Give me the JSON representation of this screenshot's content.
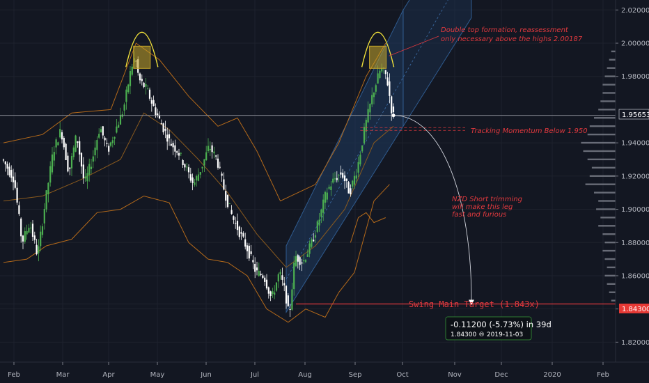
{
  "chart_data": {
    "type": "candlestick",
    "x_axis": {
      "months": [
        "Feb",
        "Mar",
        "Apr",
        "May",
        "Jun",
        "Jul",
        "Aug",
        "Sep",
        "Oct",
        "Nov",
        "Dec",
        "2020",
        "Feb"
      ]
    },
    "y_axis": {
      "position": "right",
      "range": [
        1.808,
        2.026
      ],
      "ticks": [
        "1.82000",
        "1.84000",
        "1.86000",
        "1.88000",
        "1.90000",
        "1.92000",
        "1.94000",
        "1.98000",
        "2.00000",
        "2.02000"
      ]
    },
    "price_path": [
      [
        0,
        1.93
      ],
      [
        6,
        1.918
      ],
      [
        10,
        1.88
      ],
      [
        14,
        1.892
      ],
      [
        18,
        1.872
      ],
      [
        22,
        1.905
      ],
      [
        26,
        1.935
      ],
      [
        30,
        1.948
      ],
      [
        34,
        1.922
      ],
      [
        38,
        1.945
      ],
      [
        42,
        1.915
      ],
      [
        46,
        1.93
      ],
      [
        50,
        1.95
      ],
      [
        54,
        1.935
      ],
      [
        58,
        1.948
      ],
      [
        62,
        1.96
      ],
      [
        66,
        1.985
      ],
      [
        68,
        1.992
      ],
      [
        70,
        1.978
      ],
      [
        74,
        1.972
      ],
      [
        78,
        1.96
      ],
      [
        82,
        1.95
      ],
      [
        86,
        1.94
      ],
      [
        90,
        1.935
      ],
      [
        94,
        1.925
      ],
      [
        98,
        1.915
      ],
      [
        102,
        1.925
      ],
      [
        106,
        1.938
      ],
      [
        110,
        1.93
      ],
      [
        114,
        1.91
      ],
      [
        118,
        1.895
      ],
      [
        122,
        1.885
      ],
      [
        126,
        1.875
      ],
      [
        130,
        1.862
      ],
      [
        134,
        1.86
      ],
      [
        138,
        1.846
      ],
      [
        142,
        1.862
      ],
      [
        145,
        1.85
      ],
      [
        147,
        1.835
      ],
      [
        150,
        1.872
      ],
      [
        154,
        1.868
      ],
      [
        158,
        1.878
      ],
      [
        162,
        1.892
      ],
      [
        166,
        1.91
      ],
      [
        170,
        1.918
      ],
      [
        174,
        1.922
      ],
      [
        178,
        1.91
      ],
      [
        182,
        1.925
      ],
      [
        186,
        1.95
      ],
      [
        190,
        1.97
      ],
      [
        194,
        1.985
      ],
      [
        197,
        1.98
      ],
      [
        200,
        1.9565
      ]
    ],
    "upper_band": [
      [
        0,
        1.94
      ],
      [
        20,
        1.945
      ],
      [
        35,
        1.958
      ],
      [
        55,
        1.96
      ],
      [
        68,
        2.0
      ],
      [
        80,
        1.99
      ],
      [
        95,
        1.968
      ],
      [
        110,
        1.95
      ],
      [
        120,
        1.955
      ],
      [
        130,
        1.935
      ],
      [
        142,
        1.905
      ],
      [
        160,
        1.915
      ],
      [
        172,
        1.94
      ],
      [
        186,
        1.98
      ],
      [
        196,
        2.0
      ]
    ],
    "lower_band": [
      [
        0,
        1.868
      ],
      [
        12,
        1.87
      ],
      [
        22,
        1.878
      ],
      [
        35,
        1.882
      ],
      [
        48,
        1.898
      ],
      [
        60,
        1.9
      ],
      [
        72,
        1.908
      ],
      [
        85,
        1.904
      ],
      [
        95,
        1.88
      ],
      [
        105,
        1.87
      ],
      [
        115,
        1.868
      ],
      [
        125,
        1.86
      ],
      [
        135,
        1.84
      ],
      [
        146,
        1.832
      ],
      [
        155,
        1.84
      ],
      [
        165,
        1.835
      ],
      [
        172,
        1.85
      ],
      [
        180,
        1.862
      ],
      [
        190,
        1.905
      ],
      [
        198,
        1.915
      ]
    ],
    "mid_band": [
      [
        0,
        1.905
      ],
      [
        20,
        1.908
      ],
      [
        40,
        1.918
      ],
      [
        60,
        1.93
      ],
      [
        72,
        1.958
      ],
      [
        85,
        1.948
      ],
      [
        100,
        1.93
      ],
      [
        115,
        1.91
      ],
      [
        130,
        1.885
      ],
      [
        145,
        1.865
      ],
      [
        160,
        1.878
      ],
      [
        175,
        1.9
      ],
      [
        190,
        1.94
      ],
      [
        200,
        1.95
      ]
    ],
    "momentum_line": [
      [
        178,
        1.88
      ],
      [
        182,
        1.895
      ],
      [
        186,
        1.898
      ],
      [
        190,
        1.892
      ],
      [
        196,
        1.895
      ]
    ],
    "channel": {
      "base_start": [
        145,
        1.838
      ],
      "base_end": [
        205,
        1.95
      ],
      "width": 0.04
    },
    "double_top": [
      [
        71,
        1.9915
      ],
      [
        192,
        1.9915
      ]
    ],
    "current_price": {
      "value": 1.95653,
      "label": "1.95653"
    },
    "tracking_level": {
      "value": 1.95
    },
    "target_level": {
      "value": 1.843,
      "label": "1.84300"
    },
    "projection_end_idx": 240,
    "volume_profile": [
      [
        1.995,
        2
      ],
      [
        1.99,
        3
      ],
      [
        1.985,
        4
      ],
      [
        1.98,
        5
      ],
      [
        1.975,
        6
      ],
      [
        1.97,
        6
      ],
      [
        1.965,
        7
      ],
      [
        1.96,
        8
      ],
      [
        1.955,
        10
      ],
      [
        1.95,
        12
      ],
      [
        1.945,
        13
      ],
      [
        1.94,
        16
      ],
      [
        1.935,
        15
      ],
      [
        1.93,
        13
      ],
      [
        1.925,
        11
      ],
      [
        1.92,
        12
      ],
      [
        1.915,
        14
      ],
      [
        1.91,
        10
      ],
      [
        1.905,
        8
      ],
      [
        1.9,
        9
      ],
      [
        1.895,
        7
      ],
      [
        1.89,
        8
      ],
      [
        1.885,
        6
      ],
      [
        1.88,
        5
      ],
      [
        1.875,
        6
      ],
      [
        1.87,
        5
      ],
      [
        1.865,
        4
      ],
      [
        1.86,
        5
      ],
      [
        1.855,
        4
      ],
      [
        1.85,
        3
      ],
      [
        1.845,
        2
      ]
    ]
  },
  "annotations": {
    "double_top_line1": "Double top formation, reassessment",
    "double_top_line2": "only necessary above the highs 2.00187",
    "tracking": "Tracking Momentum Below 1.950",
    "nzd_line1": "NZD Short trimming",
    "nzd_line2": "will make this leg",
    "nzd_line3": "fast and furious",
    "target_label": "Swing Main Target (1.843x)"
  },
  "tooltip": {
    "main": "-0.11200 (-5.73%) in 39d",
    "sub": "1.84300  ®  2019-11-03"
  },
  "colors": {
    "bg": "#131722",
    "up": "#4caf50",
    "down": "#ffffff",
    "band": "#b56a1a",
    "annotation": "#e0393e",
    "arc": "#f0e03a",
    "box": "#c8a82a",
    "channel": "#1f3a5f",
    "target_tag": "#e53935",
    "tooltip_border": "#2e7d32"
  }
}
